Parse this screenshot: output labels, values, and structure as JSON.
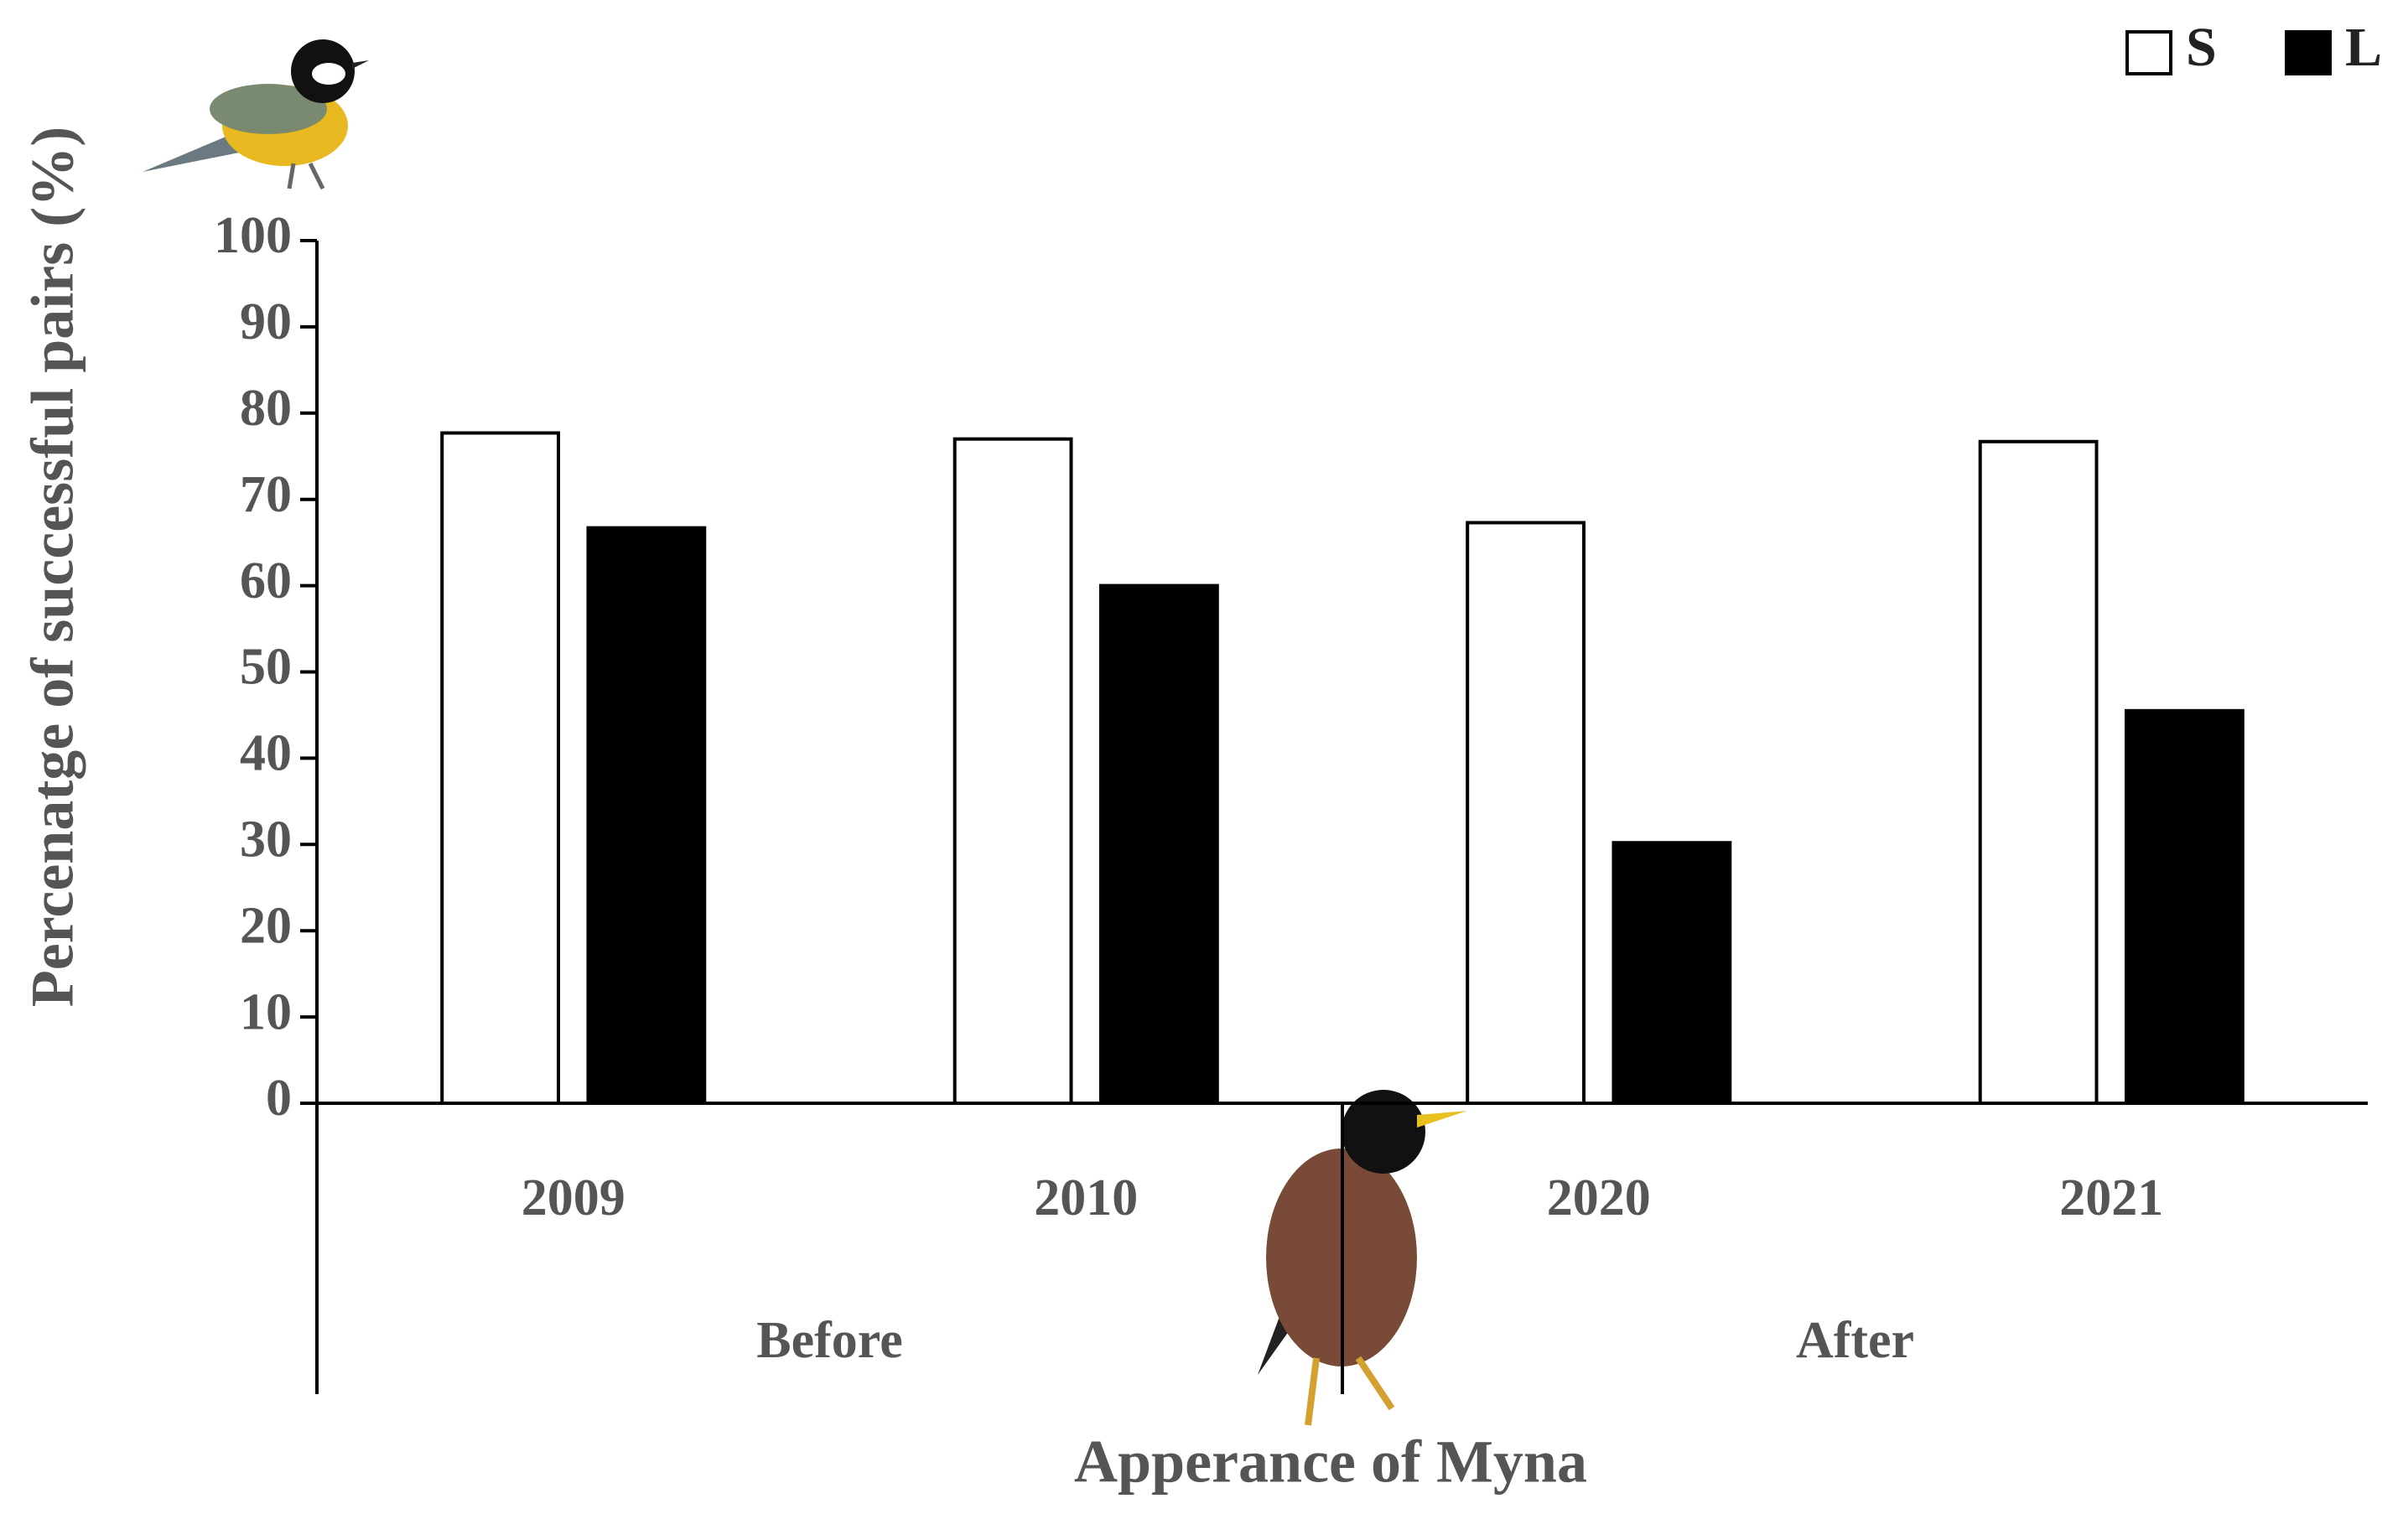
{
  "chart_data": {
    "type": "bar",
    "y_label": "Percenatge of successful pairs (%)",
    "x_label": "Apperance of Myna",
    "categories": [
      "2009",
      "2010",
      "2020",
      "2021"
    ],
    "group_labels": [
      "Before",
      "After"
    ],
    "series": [
      {
        "name": "S",
        "color": "#ffffff",
        "values": [
          77.7,
          77,
          67.3,
          76.7
        ]
      },
      {
        "name": "L",
        "color": "#000000",
        "values": [
          66.7,
          60,
          30.2,
          45.5
        ]
      }
    ],
    "ylim": [
      0,
      100
    ],
    "yticks": [
      0,
      10,
      20,
      30,
      40,
      50,
      60,
      70,
      80,
      90,
      100
    ],
    "grid": false,
    "legend": "top-right"
  }
}
